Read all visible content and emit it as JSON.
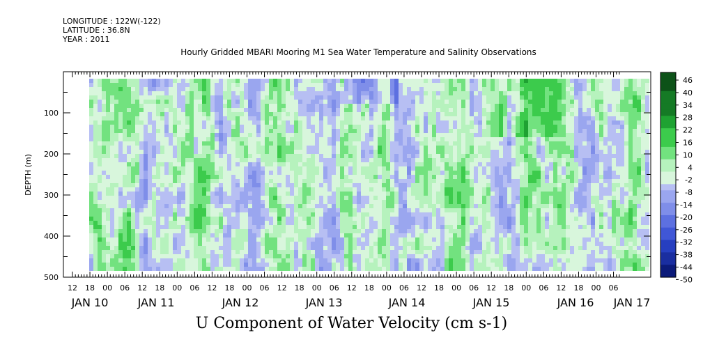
{
  "header": {
    "longitude": "LONGITUDE : 122W(-122)",
    "latitude": "LATITUDE : 36.8N",
    "year": "YEAR : 2011"
  },
  "chart_data": {
    "type": "heatmap",
    "title": "Hourly Gridded MBARI Mooring M1 Sea Water Temperature and Salinity Observations",
    "xlabel": "",
    "ylabel": "DEPTH (m)",
    "caption": "U Component of Water Velocity (cm s-1)",
    "y_range": [
      0,
      500
    ],
    "y_inverted": true,
    "y_ticks": [
      100,
      200,
      300,
      400,
      500
    ],
    "data_depth_range": [
      20,
      490
    ],
    "x_start_time": "JAN 10 12:00",
    "x_hour_ticks": [
      "12",
      "18",
      "00",
      "06",
      "12",
      "18",
      "00",
      "06",
      "12",
      "18",
      "00",
      "06",
      "12",
      "18",
      "00",
      "06",
      "12",
      "18",
      "00",
      "06",
      "12",
      "18",
      "00",
      "06",
      "12",
      "18",
      "00",
      "06",
      "12",
      "18",
      "00",
      "06"
    ],
    "x_day_labels": [
      "JAN 10",
      "JAN 11",
      "JAN 12",
      "JAN 13",
      "JAN 14",
      "JAN 15",
      "JAN 16",
      "JAN 17"
    ],
    "colorbar_levels": [
      46,
      40,
      34,
      28,
      22,
      16,
      10,
      4,
      -2,
      -8,
      -14,
      -20,
      -26,
      -32,
      -38,
      -44,
      -50
    ],
    "colorbar_range": [
      -50,
      50
    ],
    "colorbar_step": 3,
    "grid": false,
    "colors": {
      "strong_negative": "#0a1a8c",
      "moderate_negative": "#3f5cdc",
      "weak_negative": "#9ea8ee",
      "near_zero": "#e8f8e8",
      "weak_positive": "#8af09a",
      "moderate_positive": "#2cc03c",
      "strong_positive": "#0b4a12"
    },
    "field_description_columns": [
      {
        "day": "JAN 10",
        "pattern": "mixed, weak positive upper"
      },
      {
        "day": "JAN 11",
        "pattern": "mostly weak negative with positive bands"
      },
      {
        "day": "JAN 12",
        "pattern": "mixed, weak positive mid-depth"
      },
      {
        "day": "JAN 13",
        "pattern": "mixed, negative upper"
      },
      {
        "day": "JAN 14",
        "pattern": "weak negative dominant"
      },
      {
        "day": "JAN 15",
        "pattern": "positive upper, mixed"
      },
      {
        "day": "JAN 16",
        "pattern": "positive and negative mixed"
      },
      {
        "day": "JAN 17",
        "pattern": "weak positive"
      }
    ]
  }
}
